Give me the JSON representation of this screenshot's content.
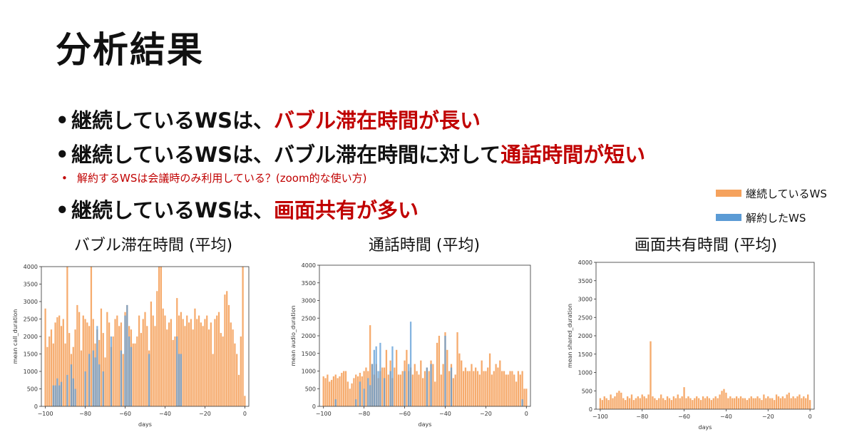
{
  "title": "分析結果",
  "bullets": [
    {
      "text": "継続しているWSは、",
      "highlight": "バブル滞在時間が長い"
    },
    {
      "text": "継続しているWSは、バブル滞在時間に対して",
      "highlight": "通話時間が短い"
    },
    {
      "text": "継続しているWSは、",
      "highlight": "画面共有が多い"
    }
  ],
  "sub_bullet": "解約するWSは会議時のみ利用している？(zoom的な使い方)",
  "legend": [
    {
      "label": "継続しているWS",
      "color": "#f5a25d"
    },
    {
      "label": "解約したWS",
      "color": "#5b9bd5"
    }
  ],
  "chart_data": [
    {
      "type": "bar",
      "title": "バブル滞在時間 (平均)",
      "xlabel": "days",
      "ylabel": "mean call_duration",
      "xlim": [
        -102,
        2
      ],
      "ylim": [
        0,
        4000
      ],
      "xticks": [
        -100,
        -80,
        -60,
        -40,
        -20,
        0
      ],
      "yticks": [
        0,
        500,
        1000,
        1500,
        2000,
        2500,
        3000,
        3500,
        4000
      ],
      "x": [
        -100,
        -99,
        -98,
        -97,
        -96,
        -95,
        -94,
        -93,
        -92,
        -91,
        -90,
        -89,
        -88,
        -87,
        -86,
        -85,
        -84,
        -83,
        -82,
        -81,
        -80,
        -79,
        -78,
        -77,
        -76,
        -75,
        -74,
        -73,
        -72,
        -71,
        -70,
        -69,
        -68,
        -67,
        -66,
        -65,
        -64,
        -63,
        -62,
        -61,
        -60,
        -59,
        -58,
        -57,
        -56,
        -55,
        -54,
        -53,
        -52,
        -51,
        -50,
        -49,
        -48,
        -47,
        -46,
        -45,
        -44,
        -43,
        -42,
        -41,
        -40,
        -39,
        -38,
        -37,
        -36,
        -35,
        -34,
        -33,
        -32,
        -31,
        -30,
        -29,
        -28,
        -27,
        -26,
        -25,
        -24,
        -23,
        -22,
        -21,
        -20,
        -19,
        -18,
        -17,
        -16,
        -15,
        -14,
        -13,
        -12,
        -11,
        -10,
        -9,
        -8,
        -7,
        -6,
        -5,
        -4,
        -3,
        -2,
        -1,
        0
      ],
      "series": [
        {
          "name": "継続しているWS",
          "color": "#f5a25d",
          "values": [
            2800,
            1700,
            2000,
            2200,
            1800,
            2400,
            2550,
            2600,
            2300,
            2500,
            1800,
            4000,
            2100,
            1500,
            1700,
            2200,
            2900,
            2700,
            1600,
            2600,
            2500,
            2400,
            2300,
            4000,
            2500,
            1800,
            2200,
            1900,
            2800,
            2100,
            1400,
            2700,
            2400,
            1700,
            2000,
            2500,
            2600,
            2300,
            2400,
            1500,
            2700,
            2900,
            2300,
            2200,
            1800,
            1800,
            2000,
            2600,
            2100,
            2500,
            2700,
            2300,
            1600,
            3000,
            2600,
            2300,
            3300,
            4000,
            4000,
            2800,
            2600,
            2200,
            2400,
            2500,
            1900,
            2000,
            3100,
            2600,
            2700,
            2500,
            2300,
            2600,
            2400,
            2500,
            2200,
            2800,
            2500,
            2600,
            2400,
            2300,
            2500,
            2600,
            2200,
            2400,
            1500,
            2500,
            2600,
            2700,
            2100,
            2000,
            3200,
            3300,
            2900,
            2400,
            2200,
            1800,
            1500,
            900,
            2000,
            4000,
            300
          ]
        },
        {
          "name": "解約したWS",
          "color": "#5b9bd5",
          "values": [
            0,
            0,
            0,
            0,
            600,
            600,
            800,
            600,
            700,
            0,
            0,
            900,
            0,
            1200,
            800,
            500,
            0,
            0,
            0,
            0,
            1000,
            0,
            1500,
            0,
            1600,
            1400,
            2300,
            1200,
            0,
            1000,
            0,
            0,
            0,
            2000,
            0,
            0,
            0,
            0,
            1600,
            0,
            2600,
            2900,
            2000,
            1700,
            0,
            0,
            0,
            0,
            0,
            0,
            0,
            0,
            1500,
            0,
            0,
            0,
            0,
            0,
            0,
            0,
            0,
            0,
            0,
            0,
            0,
            0,
            2000,
            1500,
            1500,
            0,
            0,
            0,
            0,
            0,
            0,
            0,
            0,
            0,
            0,
            0,
            0,
            0,
            0,
            0,
            0,
            0,
            0,
            0,
            0,
            0,
            0,
            0,
            0,
            0,
            0,
            0,
            0,
            0,
            0,
            0,
            0
          ]
        }
      ]
    },
    {
      "type": "bar",
      "title": "通話時間 (平均)",
      "xlabel": "days",
      "ylabel": "mean audio_duration",
      "xlim": [
        -102,
        2
      ],
      "ylim": [
        0,
        4000
      ],
      "xticks": [
        -100,
        -80,
        -60,
        -40,
        -20,
        0
      ],
      "yticks": [
        0,
        500,
        1000,
        1500,
        2000,
        2500,
        3000,
        3500,
        4000
      ],
      "x": [
        -100,
        -99,
        -98,
        -97,
        -96,
        -95,
        -94,
        -93,
        -92,
        -91,
        -90,
        -89,
        -88,
        -87,
        -86,
        -85,
        -84,
        -83,
        -82,
        -81,
        -80,
        -79,
        -78,
        -77,
        -76,
        -75,
        -74,
        -73,
        -72,
        -71,
        -70,
        -69,
        -68,
        -67,
        -66,
        -65,
        -64,
        -63,
        -62,
        -61,
        -60,
        -59,
        -58,
        -57,
        -56,
        -55,
        -54,
        -53,
        -52,
        -51,
        -50,
        -49,
        -48,
        -47,
        -46,
        -45,
        -44,
        -43,
        -42,
        -41,
        -40,
        -39,
        -38,
        -37,
        -36,
        -35,
        -34,
        -33,
        -32,
        -31,
        -30,
        -29,
        -28,
        -27,
        -26,
        -25,
        -24,
        -23,
        -22,
        -21,
        -20,
        -19,
        -18,
        -17,
        -16,
        -15,
        -14,
        -13,
        -12,
        -11,
        -10,
        -9,
        -8,
        -7,
        -6,
        -5,
        -4,
        -3,
        -2,
        -1,
        0
      ],
      "series": [
        {
          "name": "継続しているWS",
          "color": "#f5a25d",
          "values": [
            850,
            800,
            900,
            700,
            750,
            850,
            900,
            800,
            850,
            950,
            1000,
            1000,
            700,
            500,
            650,
            800,
            900,
            850,
            950,
            850,
            1000,
            1100,
            1000,
            2300,
            1200,
            900,
            1200,
            800,
            1000,
            1100,
            1100,
            1600,
            900,
            1300,
            800,
            1100,
            1600,
            900,
            900,
            1000,
            1300,
            1600,
            1000,
            1100,
            900,
            1200,
            1000,
            900,
            1300,
            800,
            1000,
            1100,
            1000,
            1300,
            1200,
            700,
            1800,
            2000,
            900,
            1200,
            2100,
            1600,
            1000,
            1200,
            800,
            900,
            2100,
            1500,
            1300,
            1000,
            1100,
            1000,
            1000,
            1200,
            1000,
            1100,
            1000,
            900,
            1300,
            1000,
            1000,
            1100,
            1500,
            900,
            1000,
            1200,
            1100,
            1300,
            1000,
            1000,
            900,
            900,
            1000,
            1000,
            900,
            700,
            1000,
            900,
            1000,
            500,
            500
          ]
        },
        {
          "name": "解約したWS",
          "color": "#5b9bd5",
          "values": [
            0,
            0,
            0,
            0,
            0,
            0,
            200,
            0,
            0,
            0,
            0,
            0,
            0,
            0,
            0,
            0,
            200,
            0,
            700,
            0,
            500,
            0,
            800,
            600,
            1200,
            1600,
            1700,
            1000,
            1800,
            0,
            800,
            0,
            0,
            1000,
            1700,
            0,
            0,
            0,
            0,
            0,
            1000,
            0,
            1200,
            2400,
            0,
            0,
            0,
            0,
            0,
            0,
            0,
            1100,
            0,
            1200,
            0,
            0,
            0,
            0,
            0,
            0,
            2000,
            0,
            0,
            1100,
            0,
            0,
            0,
            0,
            0,
            0,
            0,
            0,
            0,
            0,
            0,
            0,
            0,
            0,
            0,
            0,
            0,
            0,
            0,
            0,
            0,
            0,
            0,
            0,
            0,
            0,
            0,
            0,
            0,
            0,
            0,
            0,
            0,
            0,
            200,
            0,
            0
          ]
        }
      ]
    },
    {
      "type": "bar",
      "title": "画面共有時間 (平均)",
      "xlabel": "days",
      "ylabel": "mean shared_duration",
      "xlim": [
        -102,
        2
      ],
      "ylim": [
        0,
        4000
      ],
      "xticks": [
        -100,
        -80,
        -60,
        -40,
        -20,
        0
      ],
      "yticks": [
        0,
        500,
        1000,
        1500,
        2000,
        2500,
        3000,
        3500,
        4000
      ],
      "x": [
        -100,
        -99,
        -98,
        -97,
        -96,
        -95,
        -94,
        -93,
        -92,
        -91,
        -90,
        -89,
        -88,
        -87,
        -86,
        -85,
        -84,
        -83,
        -82,
        -81,
        -80,
        -79,
        -78,
        -77,
        -76,
        -75,
        -74,
        -73,
        -72,
        -71,
        -70,
        -69,
        -68,
        -67,
        -66,
        -65,
        -64,
        -63,
        -62,
        -61,
        -60,
        -59,
        -58,
        -57,
        -56,
        -55,
        -54,
        -53,
        -52,
        -51,
        -50,
        -49,
        -48,
        -47,
        -46,
        -45,
        -44,
        -43,
        -42,
        -41,
        -40,
        -39,
        -38,
        -37,
        -36,
        -35,
        -34,
        -33,
        -32,
        -31,
        -30,
        -29,
        -28,
        -27,
        -26,
        -25,
        -24,
        -23,
        -22,
        -21,
        -20,
        -19,
        -18,
        -17,
        -16,
        -15,
        -14,
        -13,
        -12,
        -11,
        -10,
        -9,
        -8,
        -7,
        -6,
        -5,
        -4,
        -3,
        -2,
        -1,
        0
      ],
      "series": [
        {
          "name": "継続しているWS",
          "color": "#f5a25d",
          "values": [
            300,
            250,
            350,
            300,
            250,
            400,
            300,
            350,
            450,
            500,
            450,
            300,
            250,
            350,
            300,
            400,
            250,
            300,
            350,
            300,
            400,
            350,
            300,
            400,
            1850,
            350,
            300,
            250,
            300,
            400,
            300,
            250,
            350,
            300,
            250,
            350,
            300,
            400,
            300,
            350,
            600,
            300,
            350,
            300,
            250,
            300,
            350,
            300,
            250,
            350,
            300,
            350,
            300,
            250,
            300,
            350,
            300,
            400,
            500,
            550,
            450,
            300,
            350,
            300,
            300,
            350,
            300,
            350,
            300,
            300,
            250,
            300,
            350,
            300,
            300,
            350,
            300,
            250,
            400,
            300,
            350,
            300,
            300,
            250,
            400,
            350,
            300,
            350,
            300,
            400,
            450,
            300,
            350,
            300,
            350,
            400,
            300,
            350,
            300,
            400,
            250
          ]
        }
      ]
    }
  ]
}
